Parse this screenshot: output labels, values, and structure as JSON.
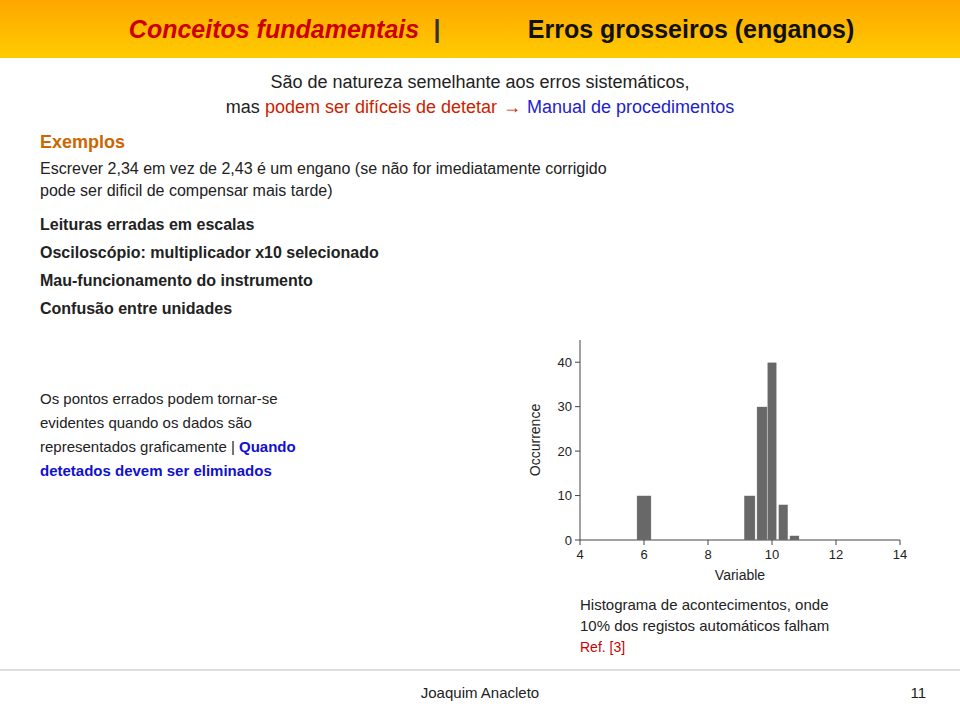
{
  "chart_data": {
    "type": "histogram",
    "x": [
      6.0,
      9.3,
      9.7,
      10.0,
      10.35,
      10.7
    ],
    "widths": [
      0.45,
      0.35,
      0.35,
      0.3,
      0.3,
      0.3
    ],
    "values": [
      10,
      10,
      30,
      40,
      8,
      1
    ],
    "color": "#686868",
    "xlim": [
      4,
      14
    ],
    "ylim": [
      0,
      45
    ],
    "xticks": [
      4,
      6,
      8,
      10,
      12,
      14
    ],
    "yticks": [
      0,
      10,
      20,
      30,
      40
    ],
    "xlabel": "Variable",
    "ylabel": "Occurrence",
    "grid": false,
    "header": [
      {
        "text": "Conceitos fundamentais",
        "color": "#CC0000"
      },
      {
        "text": "|"
      },
      {
        "text": "Erros grosseiros (enganos)",
        "color": "#111111"
      }
    ],
    "intro": [
      [
        {
          "text": "São de natureza semelhante aos erros sistemáticos,"
        }
      ],
      [
        {
          "text": "mas "
        },
        {
          "text": "podem ser difíceis de detetar",
          "color": "#CC2200"
        },
        {
          "text": "→",
          "color": "#CC2200"
        },
        {
          "text": "Manual de procedimentos",
          "color": "#2222CC"
        }
      ]
    ],
    "examples_title": {
      "text": "Exemplos",
      "color": "#CC6600"
    },
    "body": [
      "Escrever 2,34 em vez de 2,43 é um engano (se não for imediatamente corrigido",
      "pode ser dificil de compensar mais tarde)"
    ],
    "bullets": [
      "Leituras erradas em escalas",
      "Osciloscópio: multiplicador x10 selecionado",
      "Mau-funcionamento do instrumento",
      "Confusão entre unidades"
    ],
    "notes": [
      [
        {
          "text": "Os pontos errados podem tornar-se"
        }
      ],
      [
        {
          "text": "evidentes quando os dados são"
        }
      ],
      [
        {
          "text": "representados graficamente | "
        },
        {
          "text": "Quando",
          "color": "#1111CC"
        }
      ],
      [
        {
          "text": "detetados devem ser eliminados",
          "color": "#1111CC"
        }
      ]
    ],
    "captions": [
      {
        "text": "Histograma de acontecimentos, onde"
      },
      {
        "text": "10% dos registos automáticos falham"
      },
      {
        "text": "Ref. [3]",
        "color": "#CC0000"
      }
    ],
    "footer": [
      "Joaquim Anacleto",
      "11"
    ]
  }
}
